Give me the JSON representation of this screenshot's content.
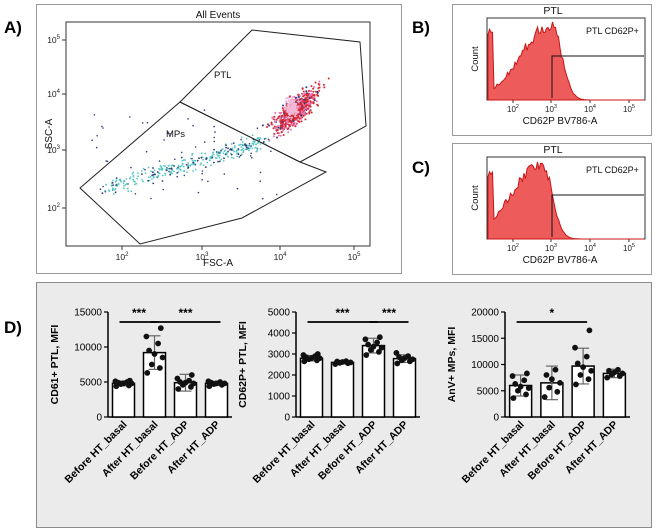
{
  "panels": {
    "a": "A)",
    "b": "B)",
    "c": "C)",
    "d": "D)"
  },
  "colors": {
    "dot_red": "#d8282f",
    "dot_pink": "#e872b2",
    "dot_cyan": "#58c8c4",
    "dot_navy": "#2d3a7a",
    "hist_fill": "#ee5b5b",
    "hist_line": "#c81414"
  },
  "chart_data": [
    {
      "id": "panel-a",
      "type": "scatter",
      "title": "All Events",
      "xlabel": "FSC-A",
      "ylabel": "SSC-A",
      "x_ticks": [
        "10^2",
        "10^3",
        "10^4",
        "10^5"
      ],
      "y_ticks": [
        "10^2",
        "10^3",
        "10^4",
        "10^5"
      ],
      "gates": [
        {
          "name": "PTL"
        },
        {
          "name": "MPs"
        }
      ]
    },
    {
      "id": "panel-b",
      "type": "area",
      "title": "PTL",
      "gate_label": "PTL CD62P+",
      "xlabel": "CD62P BV786-A",
      "ylabel": "Count",
      "x_ticks": [
        "10^2",
        "10^3",
        "10^4",
        "10^5"
      ],
      "peak": 3.0
    },
    {
      "id": "panel-c",
      "type": "area",
      "title": "PTL",
      "gate_label": "PTL CD62P+",
      "xlabel": "CD62P BV786-A",
      "ylabel": "Count",
      "x_ticks": [
        "10^2",
        "10^3",
        "10^4",
        "10^5"
      ],
      "peak": 2.75
    },
    {
      "id": "cd61",
      "type": "bar",
      "ylabel": "CD61+ PTL, MFI",
      "categories": [
        "Before HT_basal",
        "After HT_basal",
        "Before HT_ADP",
        "After HT_ADP"
      ],
      "values": [
        4800,
        9200,
        4900,
        4800
      ],
      "errors": [
        350,
        2400,
        1200,
        300
      ],
      "points": [
        [
          4400,
          4500,
          4700,
          4800,
          4800,
          4900,
          5000,
          5100,
          5200
        ],
        [
          6300,
          7000,
          7500,
          8500,
          9000,
          9500,
          10500,
          11500,
          12700
        ],
        [
          4000,
          4300,
          4600,
          4800,
          4900,
          5000,
          5200,
          5500,
          6000
        ],
        [
          4400,
          4600,
          4700,
          4800,
          4800,
          4900,
          5000,
          5100
        ]
      ],
      "ylim": [
        0,
        15000
      ],
      "yticks": [
        0,
        5000,
        10000,
        15000
      ],
      "significance": [
        {
          "from": 0,
          "to": 1,
          "label": "***"
        },
        {
          "from": 1,
          "to": 3,
          "label": "***"
        }
      ]
    },
    {
      "id": "cd62p",
      "type": "bar",
      "ylabel": "CD62P+ PTL, MFI",
      "categories": [
        "Before HT_basal",
        "After HT_basal",
        "Before HT_ADP",
        "After HT_ADP"
      ],
      "values": [
        2800,
        2600,
        3400,
        2780
      ],
      "errors": [
        130,
        70,
        350,
        180
      ],
      "points": [
        [
          2650,
          2700,
          2750,
          2800,
          2800,
          2850,
          2900,
          2950,
          3000
        ],
        [
          2520,
          2560,
          2580,
          2600,
          2620,
          2640,
          2660
        ],
        [
          2950,
          3100,
          3200,
          3300,
          3350,
          3450,
          3550,
          3700,
          3800
        ],
        [
          2550,
          2650,
          2700,
          2750,
          2800,
          2850,
          2900,
          3050
        ]
      ],
      "ylim": [
        0,
        5000
      ],
      "yticks": [
        0,
        1000,
        2000,
        3000,
        4000,
        5000
      ],
      "significance": [
        {
          "from": 0,
          "to": 2,
          "label": "***"
        },
        {
          "from": 2,
          "to": 3,
          "label": "***"
        }
      ]
    },
    {
      "id": "anv",
      "type": "bar",
      "ylabel": "AnV+ MPs, MFI",
      "categories": [
        "Before HT_basal",
        "After HT_basal",
        "Before HT_ADP",
        "After HT_ADP"
      ],
      "values": [
        6000,
        6500,
        9700,
        8300
      ],
      "errors": [
        2000,
        3200,
        3400,
        800
      ],
      "points": [
        [
          3600,
          4300,
          5000,
          5500,
          5800,
          6300,
          7000,
          7800,
          8300
        ],
        [
          3800,
          4800,
          5600,
          6500,
          7200,
          8000,
          9000
        ],
        [
          6200,
          7200,
          8000,
          8800,
          9500,
          10200,
          11500,
          13200,
          16500
        ],
        [
          7500,
          7800,
          8100,
          8300,
          8500,
          8800,
          9000
        ]
      ],
      "ylim": [
        0,
        20000
      ],
      "yticks": [
        0,
        5000,
        10000,
        15000,
        20000
      ],
      "significance": [
        {
          "from": 0,
          "to": 2,
          "label": "*"
        }
      ]
    }
  ]
}
